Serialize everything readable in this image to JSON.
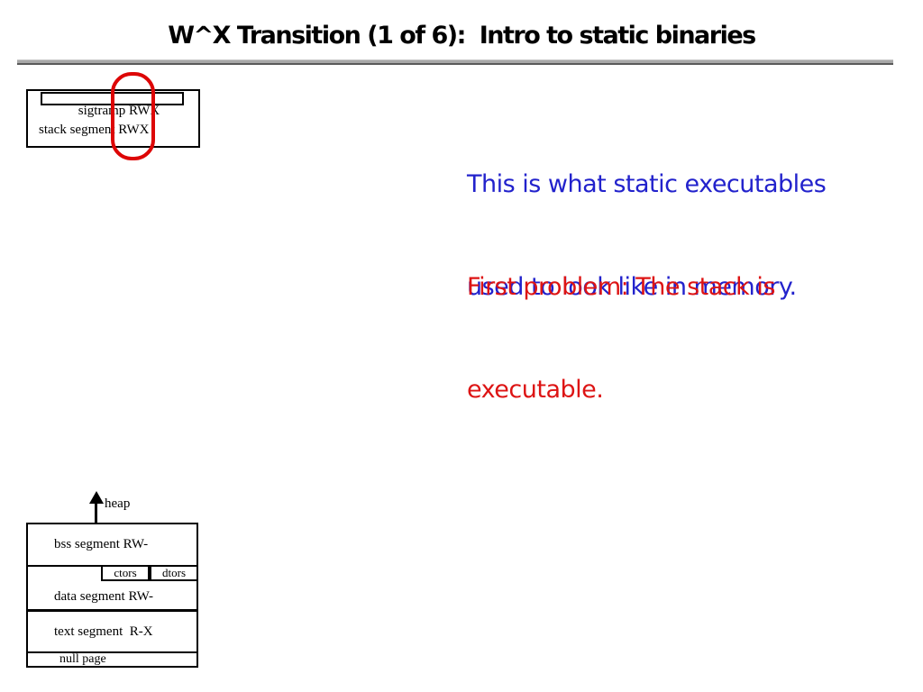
{
  "slide": {
    "title": "W^X Transition (1 of 6):  Intro to static binaries"
  },
  "colors": {
    "title_text": "#000000",
    "separator_gray": "#a8a8a8",
    "note_blue": "#2222cc",
    "note_red": "#dd1414",
    "annotation_ellipse_red": "#dd0606",
    "diagram_line": "#000000",
    "background": "#ffffff"
  },
  "stack_diagram": {
    "sigtramp_label": "sigtramp RWX",
    "stack_label": "stack segment RWX"
  },
  "notes": {
    "blue_lines": [
      "This is what static executables",
      "used to look like in memory."
    ],
    "red_lines": [
      "First problem: The stack is",
      "executable."
    ]
  },
  "memory_diagram": {
    "heap_label": "heap",
    "bss_label": "bss segment RW-",
    "ctors_label": "ctors",
    "dtors_label": "dtors",
    "data_label": "data segment RW-",
    "text_label": "text segment  R-X",
    "null_label": "null page"
  }
}
